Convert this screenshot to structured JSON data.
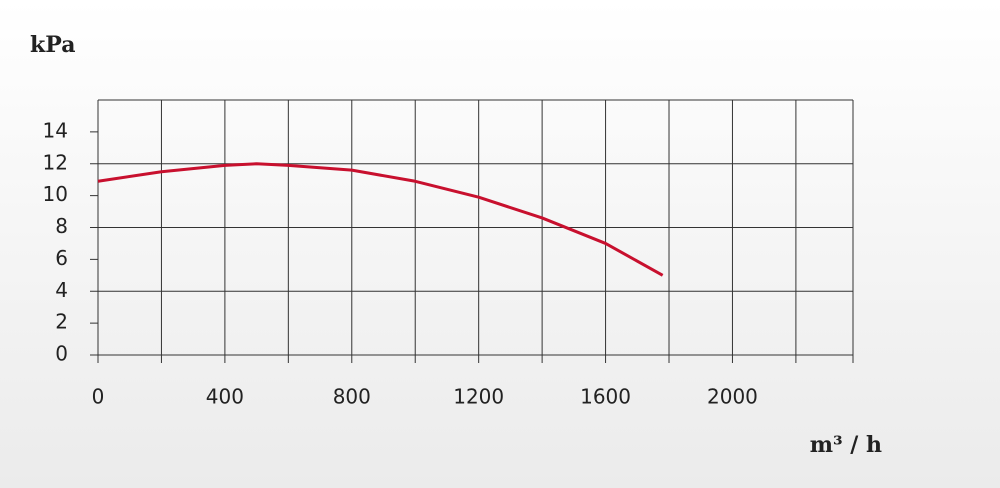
{
  "chart_data": {
    "type": "line",
    "y_label": "kPa",
    "x_label": "m³ / h",
    "x": [
      0,
      200,
      400,
      500,
      600,
      800,
      1000,
      1200,
      1400,
      1600,
      1780
    ],
    "series": [
      {
        "color": "#c8102e",
        "values": [
          10.9,
          11.5,
          11.9,
          12,
          11.9,
          11.6,
          10.9,
          9.9,
          8.6,
          7.0,
          5.0
        ]
      }
    ],
    "xlim": [
      0,
      2380
    ],
    "xticks": [
      0,
      400,
      800,
      1200,
      1600,
      2000
    ],
    "xgrid": [
      0,
      200,
      400,
      600,
      800,
      1000,
      1200,
      1400,
      1600,
      1800,
      2000,
      2200,
      2380
    ],
    "ylim": [
      0,
      16
    ],
    "yticks": [
      0,
      2,
      4,
      6,
      8,
      10,
      12,
      14
    ],
    "ygrid": [
      0,
      4,
      8,
      12,
      16
    ]
  }
}
